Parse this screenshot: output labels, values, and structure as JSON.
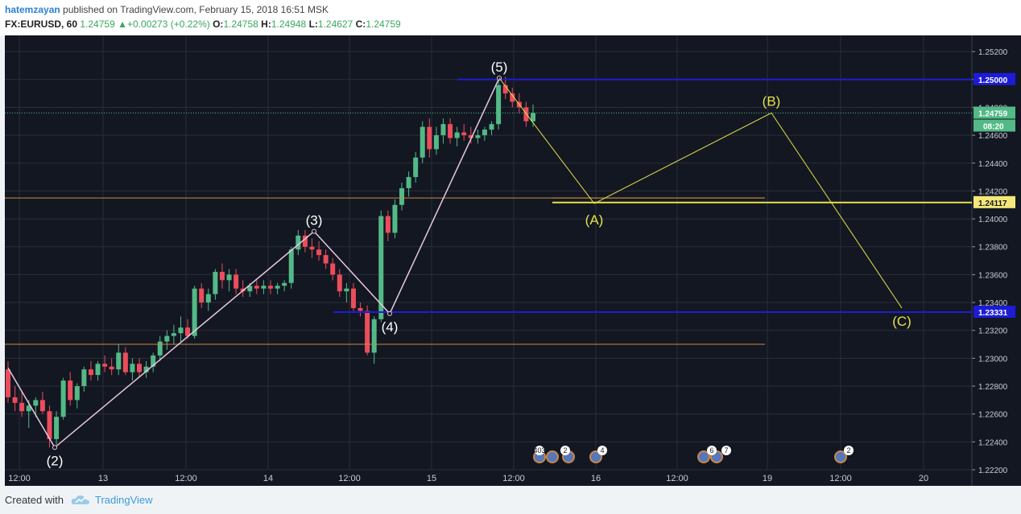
{
  "header": {
    "author": "hatemzayan",
    "published": "published on TradingView.com, February 15, 2018 16:51 MSK",
    "symbol": "FX:EURUSD, 60",
    "last": "1.24759",
    "change": "+0.00273 (+0.22%)",
    "o_label": "O:",
    "o_value": "1.24758",
    "h_label": "H:",
    "h_value": "1.24948",
    "l_label": "L:",
    "l_value": "1.24627",
    "c_label": "C:",
    "c_value": "1.24759"
  },
  "footer": {
    "created_with": "Created with",
    "brand": "TradingView"
  },
  "colors": {
    "background": "#131722",
    "grid": "#2a2e39",
    "up_candle": "#53b987",
    "down_candle": "#eb4d5c",
    "wave_line": "#e8c8e0",
    "abc_line": "#e6e24a",
    "blue_level": "#1c1cd6",
    "orange_level": "#c98a3c",
    "price_tag_green": "#53b987",
    "price_tag_blue": "#1c1cd6",
    "price_tag_yellow": "#f5e878"
  },
  "chart_data": {
    "type": "candlestick",
    "symbol": "FX:EURUSD",
    "timeframe": "60",
    "x_ticks": [
      "12:00",
      "13",
      "12:00",
      "14",
      "12:00",
      "15",
      "12:00",
      "16",
      "12:00",
      "19",
      "12:00",
      "20"
    ],
    "y_ticks": [
      "1.25200",
      "1.25000",
      "1.24800",
      "1.24600",
      "1.24400",
      "1.24200",
      "1.24000",
      "1.23800",
      "1.23600",
      "1.23400",
      "1.23200",
      "1.23000",
      "1.22800",
      "1.22600",
      "1.22400",
      "1.22200"
    ],
    "ylim": [
      1.2218,
      1.253
    ],
    "grid": true,
    "candles": [
      {
        "o": 1.2292,
        "h": 1.2298,
        "l": 1.2268,
        "c": 1.2272
      },
      {
        "o": 1.2272,
        "h": 1.228,
        "l": 1.2262,
        "c": 1.2268
      },
      {
        "o": 1.2268,
        "h": 1.2276,
        "l": 1.2258,
        "c": 1.2262
      },
      {
        "o": 1.2262,
        "h": 1.227,
        "l": 1.225,
        "c": 1.2266
      },
      {
        "o": 1.2266,
        "h": 1.2272,
        "l": 1.2258,
        "c": 1.227
      },
      {
        "o": 1.227,
        "h": 1.2276,
        "l": 1.226,
        "c": 1.2262
      },
      {
        "o": 1.2262,
        "h": 1.2266,
        "l": 1.2236,
        "c": 1.2242
      },
      {
        "o": 1.2242,
        "h": 1.2262,
        "l": 1.2238,
        "c": 1.2258
      },
      {
        "o": 1.2258,
        "h": 1.2286,
        "l": 1.2256,
        "c": 1.2284
      },
      {
        "o": 1.2284,
        "h": 1.229,
        "l": 1.2266,
        "c": 1.227
      },
      {
        "o": 1.227,
        "h": 1.2282,
        "l": 1.2264,
        "c": 1.228
      },
      {
        "o": 1.228,
        "h": 1.2294,
        "l": 1.2276,
        "c": 1.2292
      },
      {
        "o": 1.2292,
        "h": 1.2298,
        "l": 1.2284,
        "c": 1.2288
      },
      {
        "o": 1.2288,
        "h": 1.2298,
        "l": 1.2284,
        "c": 1.2296
      },
      {
        "o": 1.2296,
        "h": 1.2302,
        "l": 1.229,
        "c": 1.2294
      },
      {
        "o": 1.2294,
        "h": 1.23,
        "l": 1.2288,
        "c": 1.2292
      },
      {
        "o": 1.2292,
        "h": 1.231,
        "l": 1.2288,
        "c": 1.2304
      },
      {
        "o": 1.2304,
        "h": 1.2308,
        "l": 1.2288,
        "c": 1.229
      },
      {
        "o": 1.229,
        "h": 1.23,
        "l": 1.2284,
        "c": 1.2296
      },
      {
        "o": 1.2296,
        "h": 1.23,
        "l": 1.2286,
        "c": 1.229
      },
      {
        "o": 1.229,
        "h": 1.2298,
        "l": 1.2286,
        "c": 1.2294
      },
      {
        "o": 1.2294,
        "h": 1.2304,
        "l": 1.229,
        "c": 1.2302
      },
      {
        "o": 1.2302,
        "h": 1.2316,
        "l": 1.2298,
        "c": 1.2312
      },
      {
        "o": 1.2312,
        "h": 1.232,
        "l": 1.2306,
        "c": 1.2316
      },
      {
        "o": 1.2316,
        "h": 1.2324,
        "l": 1.231,
        "c": 1.2318
      },
      {
        "o": 1.2318,
        "h": 1.233,
        "l": 1.2312,
        "c": 1.2322
      },
      {
        "o": 1.2322,
        "h": 1.2328,
        "l": 1.2314,
        "c": 1.2316
      },
      {
        "o": 1.2316,
        "h": 1.2352,
        "l": 1.2314,
        "c": 1.235
      },
      {
        "o": 1.235,
        "h": 1.2354,
        "l": 1.2336,
        "c": 1.234
      },
      {
        "o": 1.234,
        "h": 1.235,
        "l": 1.2334,
        "c": 1.2346
      },
      {
        "o": 1.2346,
        "h": 1.2364,
        "l": 1.2342,
        "c": 1.2362
      },
      {
        "o": 1.2362,
        "h": 1.2368,
        "l": 1.235,
        "c": 1.2356
      },
      {
        "o": 1.2356,
        "h": 1.2364,
        "l": 1.2348,
        "c": 1.236
      },
      {
        "o": 1.236,
        "h": 1.2364,
        "l": 1.2346,
        "c": 1.235
      },
      {
        "o": 1.235,
        "h": 1.2356,
        "l": 1.2344,
        "c": 1.2348
      },
      {
        "o": 1.2348,
        "h": 1.2354,
        "l": 1.2344,
        "c": 1.2352
      },
      {
        "o": 1.2352,
        "h": 1.2356,
        "l": 1.2346,
        "c": 1.235
      },
      {
        "o": 1.235,
        "h": 1.2356,
        "l": 1.2346,
        "c": 1.2352
      },
      {
        "o": 1.2352,
        "h": 1.2356,
        "l": 1.2346,
        "c": 1.235
      },
      {
        "o": 1.235,
        "h": 1.2354,
        "l": 1.2346,
        "c": 1.2352
      },
      {
        "o": 1.2352,
        "h": 1.2356,
        "l": 1.2348,
        "c": 1.2354
      },
      {
        "o": 1.2354,
        "h": 1.238,
        "l": 1.235,
        "c": 1.2378
      },
      {
        "o": 1.2378,
        "h": 1.2392,
        "l": 1.2374,
        "c": 1.2388
      },
      {
        "o": 1.2388,
        "h": 1.2392,
        "l": 1.2376,
        "c": 1.238
      },
      {
        "o": 1.238,
        "h": 1.2386,
        "l": 1.2372,
        "c": 1.2378
      },
      {
        "o": 1.2378,
        "h": 1.2384,
        "l": 1.237,
        "c": 1.2374
      },
      {
        "o": 1.2374,
        "h": 1.2378,
        "l": 1.2364,
        "c": 1.2368
      },
      {
        "o": 1.2368,
        "h": 1.2372,
        "l": 1.2356,
        "c": 1.236
      },
      {
        "o": 1.236,
        "h": 1.2364,
        "l": 1.2344,
        "c": 1.2348
      },
      {
        "o": 1.2348,
        "h": 1.2354,
        "l": 1.234,
        "c": 1.235
      },
      {
        "o": 1.235,
        "h": 1.2354,
        "l": 1.2334,
        "c": 1.2336
      },
      {
        "o": 1.2336,
        "h": 1.234,
        "l": 1.233,
        "c": 1.2334
      },
      {
        "o": 1.2334,
        "h": 1.2338,
        "l": 1.2302,
        "c": 1.2304
      },
      {
        "o": 1.2304,
        "h": 1.233,
        "l": 1.2296,
        "c": 1.2328
      },
      {
        "o": 1.2328,
        "h": 1.2406,
        "l": 1.2326,
        "c": 1.2402
      },
      {
        "o": 1.2402,
        "h": 1.2406,
        "l": 1.2384,
        "c": 1.239
      },
      {
        "o": 1.239,
        "h": 1.2414,
        "l": 1.2386,
        "c": 1.241
      },
      {
        "o": 1.241,
        "h": 1.2426,
        "l": 1.2406,
        "c": 1.2422
      },
      {
        "o": 1.2422,
        "h": 1.2434,
        "l": 1.2416,
        "c": 1.243
      },
      {
        "o": 1.243,
        "h": 1.2448,
        "l": 1.2426,
        "c": 1.2444
      },
      {
        "o": 1.2444,
        "h": 1.247,
        "l": 1.244,
        "c": 1.2466
      },
      {
        "o": 1.2466,
        "h": 1.2472,
        "l": 1.2444,
        "c": 1.245
      },
      {
        "o": 1.245,
        "h": 1.2466,
        "l": 1.2446,
        "c": 1.246
      },
      {
        "o": 1.246,
        "h": 1.2472,
        "l": 1.2454,
        "c": 1.2468
      },
      {
        "o": 1.2468,
        "h": 1.2472,
        "l": 1.2454,
        "c": 1.2458
      },
      {
        "o": 1.2458,
        "h": 1.2466,
        "l": 1.2452,
        "c": 1.2462
      },
      {
        "o": 1.2462,
        "h": 1.2468,
        "l": 1.2456,
        "c": 1.246
      },
      {
        "o": 1.246,
        "h": 1.2466,
        "l": 1.2454,
        "c": 1.2458
      },
      {
        "o": 1.2458,
        "h": 1.2464,
        "l": 1.2454,
        "c": 1.246
      },
      {
        "o": 1.246,
        "h": 1.2466,
        "l": 1.2456,
        "c": 1.2464
      },
      {
        "o": 1.2464,
        "h": 1.247,
        "l": 1.246,
        "c": 1.2468
      },
      {
        "o": 1.2468,
        "h": 1.2502,
        "l": 1.2464,
        "c": 1.2496
      },
      {
        "o": 1.2496,
        "h": 1.2502,
        "l": 1.2486,
        "c": 1.249
      },
      {
        "o": 1.249,
        "h": 1.2494,
        "l": 1.248,
        "c": 1.2484
      },
      {
        "o": 1.2484,
        "h": 1.249,
        "l": 1.2476,
        "c": 1.248
      },
      {
        "o": 1.248,
        "h": 1.2484,
        "l": 1.2466,
        "c": 1.247
      },
      {
        "o": 1.247,
        "h": 1.2482,
        "l": 1.2466,
        "c": 1.2476
      }
    ],
    "wave_labels": [
      {
        "label": "(2)",
        "price": 1.2236
      },
      {
        "label": "(3)",
        "price": 1.2391
      },
      {
        "label": "(4)",
        "price": 1.2332
      },
      {
        "label": "(5)",
        "price": 1.2501
      }
    ],
    "abc_labels": [
      {
        "label": "(A)",
        "price": 1.2411
      },
      {
        "label": "(B)",
        "price": 1.2476
      },
      {
        "label": "(C)",
        "price": 1.2336
      }
    ],
    "levels": [
      {
        "price": 1.25,
        "label": "1.25000",
        "color": "blue"
      },
      {
        "price": 1.24759,
        "label": "1.24759",
        "color": "green"
      },
      {
        "price": 1.24117,
        "label": "1.24117",
        "color": "yellow"
      },
      {
        "price": 1.23331,
        "label": "1.23331",
        "color": "blue"
      },
      {
        "price": 1.2415,
        "label": "",
        "color": "orange"
      },
      {
        "price": 1.231,
        "label": "",
        "color": "orange"
      }
    ],
    "countdown": "08:20",
    "events": [
      {
        "label": "403"
      },
      {
        "label": "2"
      },
      {
        "label": "4"
      },
      {
        "label": "6"
      },
      {
        "label": "7"
      },
      {
        "label": "2"
      }
    ]
  }
}
